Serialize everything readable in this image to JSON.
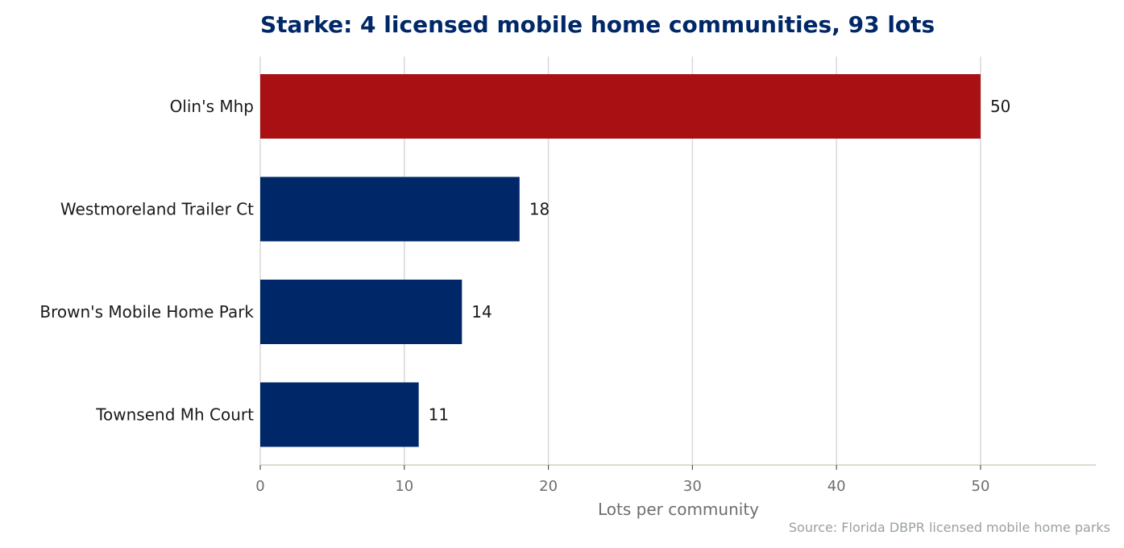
{
  "chart_data": {
    "type": "bar",
    "orientation": "horizontal",
    "title": "Starke: 4 licensed mobile home communities, 93 lots",
    "xlabel": "Lots per community",
    "ylabel": "",
    "categories": [
      "Olin's Mhp",
      "Westmoreland Trailer Ct",
      "Brown's Mobile Home Park",
      "Townsend Mh Court"
    ],
    "values": [
      50,
      18,
      14,
      11
    ],
    "xlim": [
      0,
      58
    ],
    "xticks": [
      0,
      10,
      20,
      30,
      40,
      50
    ],
    "grid": "vertical",
    "source": "Source: Florida DBPR licensed mobile home parks"
  },
  "colors": {
    "highlight": "#a81014",
    "bar": "#002868",
    "title": "#002868",
    "grid": "#d9d9d9",
    "axis": "#d0d0c0"
  }
}
